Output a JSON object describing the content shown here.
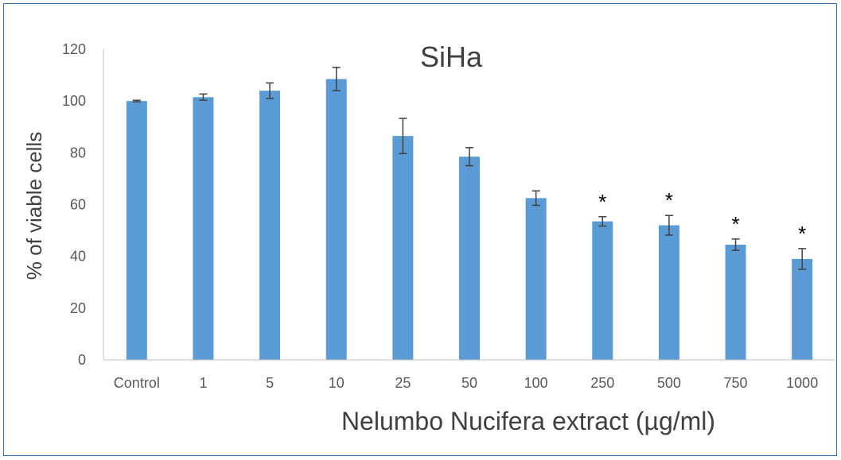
{
  "chart_data": {
    "type": "bar",
    "title": "SiHa",
    "xlabel": "Nelumbo Nucifera extract (µg/ml)",
    "ylabel": "% of viable cells",
    "categories": [
      "Control",
      "1",
      "5",
      "10",
      "25",
      "50",
      "100",
      "250",
      "500",
      "750",
      "1000"
    ],
    "values": [
      100,
      101.5,
      104,
      108.5,
      86.5,
      78.5,
      62.5,
      53.5,
      52,
      44.5,
      39
    ],
    "error": [
      0.3,
      1.2,
      3,
      4.5,
      6.8,
      3.5,
      2.8,
      1.8,
      3.8,
      2.2,
      4
    ],
    "significance": [
      "",
      "",
      "",
      "",
      "",
      "",
      "",
      "*",
      "*",
      "*",
      "*"
    ],
    "yticks": [
      0,
      20,
      40,
      60,
      80,
      100,
      120
    ],
    "ylim": [
      0,
      120
    ],
    "bar_color": "#5b9bd5",
    "grid": false,
    "legend": "none"
  }
}
